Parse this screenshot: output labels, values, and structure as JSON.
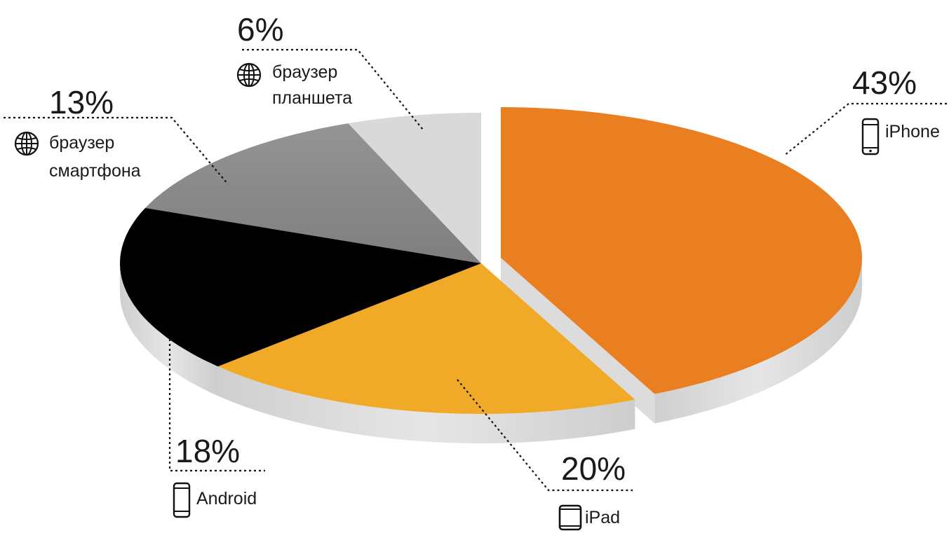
{
  "chart_data": {
    "type": "pie",
    "title": "",
    "slices": [
      {
        "key": "iphone",
        "label": "iPhone",
        "value": 43,
        "value_label": "43%",
        "color": "#E97F20",
        "icon": "smartphone-icon"
      },
      {
        "key": "ipad",
        "label": "iPad",
        "value": 20,
        "value_label": "20%",
        "color": "#F1AA28",
        "icon": "tablet-icon"
      },
      {
        "key": "android",
        "label": "Android",
        "value": 18,
        "value_label": "18%",
        "color": "#000000",
        "icon": "smartphone-icon"
      },
      {
        "key": "phone_browser",
        "label_lines": [
          "браузер",
          "смартфона"
        ],
        "value": 13,
        "value_label": "13%",
        "color": "#8A898A",
        "icon": "globe-icon"
      },
      {
        "key": "tablet_browser",
        "label_lines": [
          "браузер",
          "планшета"
        ],
        "value": 6,
        "value_label": "6%",
        "color": "#D9D9D9",
        "icon": "globe-icon"
      }
    ],
    "exploded_slice": "iPhone",
    "style": "3d-perspective",
    "legend": "none"
  },
  "colors": {
    "side": "#D4D4D4",
    "text": "#1a1a1a"
  }
}
